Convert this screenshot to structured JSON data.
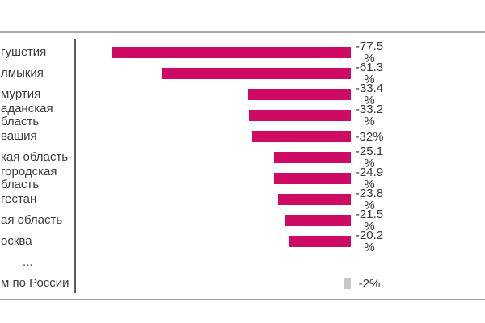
{
  "chart_data": {
    "type": "bar",
    "orientation": "horizontal",
    "title": "",
    "xlabel": "",
    "ylabel": "",
    "axis_range": [
      -90,
      0
    ],
    "grid": false,
    "legend": false,
    "unit": "%",
    "bar_color": "#ce0a64",
    "total_bar_color": "#c8c8c8",
    "divider_color": "#ababab",
    "axis_line_color": "#5c5c5c",
    "rows": [
      {
        "category_lines": [
          "гушетия"
        ],
        "value": -77.5,
        "value_label": "-77.5\n%"
      },
      {
        "category_lines": [
          "лмыкия"
        ],
        "value": -61.3,
        "value_label": "-61.3\n%"
      },
      {
        "category_lines": [
          "муртия"
        ],
        "value": -33.4,
        "value_label": "-33.4\n%"
      },
      {
        "category_lines": [
          "аданская",
          "бласть"
        ],
        "value": -33.2,
        "value_label": "-33.2\n%"
      },
      {
        "category_lines": [
          "вашия"
        ],
        "value": -32,
        "value_label": "-32%"
      },
      {
        "category_lines": [
          "кая область"
        ],
        "value": -25.1,
        "value_label": "-25.1\n%"
      },
      {
        "category_lines": [
          "городская",
          "бласть"
        ],
        "value": -24.9,
        "value_label": "-24.9\n%"
      },
      {
        "category_lines": [
          "гестан"
        ],
        "value": -23.8,
        "value_label": "-23.8\n%"
      },
      {
        "category_lines": [
          "ая область"
        ],
        "value": -21.5,
        "value_label": "-21.5\n%"
      },
      {
        "category_lines": [
          "осква"
        ],
        "value": -20.2,
        "value_label": "-20.2\n%"
      },
      {
        "category_lines": [
          "..."
        ],
        "value": null,
        "value_label": ""
      },
      {
        "category_lines": [
          "м по России"
        ],
        "value": -2,
        "value_label": "-2%",
        "muted": true
      }
    ]
  }
}
